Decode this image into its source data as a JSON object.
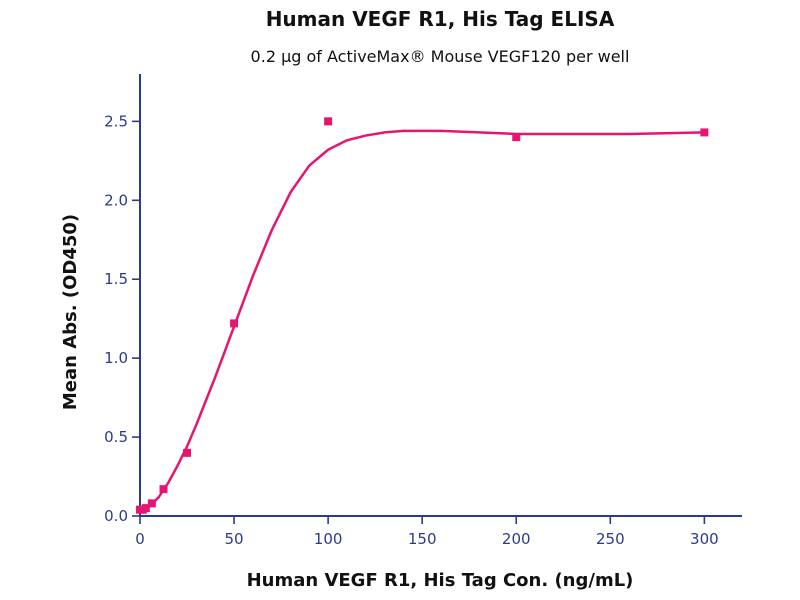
{
  "chart_data": {
    "type": "scatter",
    "title": "Human VEGF R1, His Tag ELISA",
    "subtitle": "0.2 μg of ActiveMax® Mouse VEGF120 per well",
    "xlabel": "Human VEGF R1, His Tag Con. (ng/mL)",
    "ylabel": "Mean Abs. (OD450)",
    "xlim": [
      0,
      320
    ],
    "ylim": [
      0,
      2.8
    ],
    "x_ticks": [
      0,
      50,
      100,
      150,
      200,
      250,
      300
    ],
    "x_tick_labels": [
      "0",
      "50",
      "100",
      "150",
      "200",
      "250",
      "300"
    ],
    "y_ticks": [
      0.0,
      0.5,
      1.0,
      1.5,
      2.0,
      2.5
    ],
    "y_tick_labels": [
      "0.0",
      "0.5",
      "1.0",
      "1.5",
      "2.0",
      "2.5"
    ],
    "grid": false,
    "legend": "none",
    "colors": {
      "series": "#e6156f",
      "axis": "#2a3b8f",
      "title": "#111111"
    },
    "series": [
      {
        "x": [
          0,
          1.5,
          3.1,
          6.3,
          12.5,
          25,
          50,
          100,
          200,
          300
        ],
        "y": [
          0.04,
          0.04,
          0.05,
          0.08,
          0.17,
          0.4,
          1.22,
          2.5,
          2.4,
          2.43
        ]
      }
    ],
    "fit_curve": {
      "x": [
        0,
        5,
        10,
        15,
        20,
        25,
        30,
        35,
        40,
        45,
        50,
        55,
        60,
        70,
        80,
        90,
        100,
        110,
        120,
        130,
        140,
        150,
        160,
        180,
        200,
        230,
        260,
        300
      ],
      "y": [
        0.02,
        0.06,
        0.12,
        0.21,
        0.32,
        0.44,
        0.58,
        0.73,
        0.88,
        1.04,
        1.2,
        1.36,
        1.52,
        1.81,
        2.05,
        2.22,
        2.32,
        2.38,
        2.41,
        2.43,
        2.44,
        2.44,
        2.44,
        2.43,
        2.42,
        2.42,
        2.42,
        2.43
      ]
    }
  }
}
